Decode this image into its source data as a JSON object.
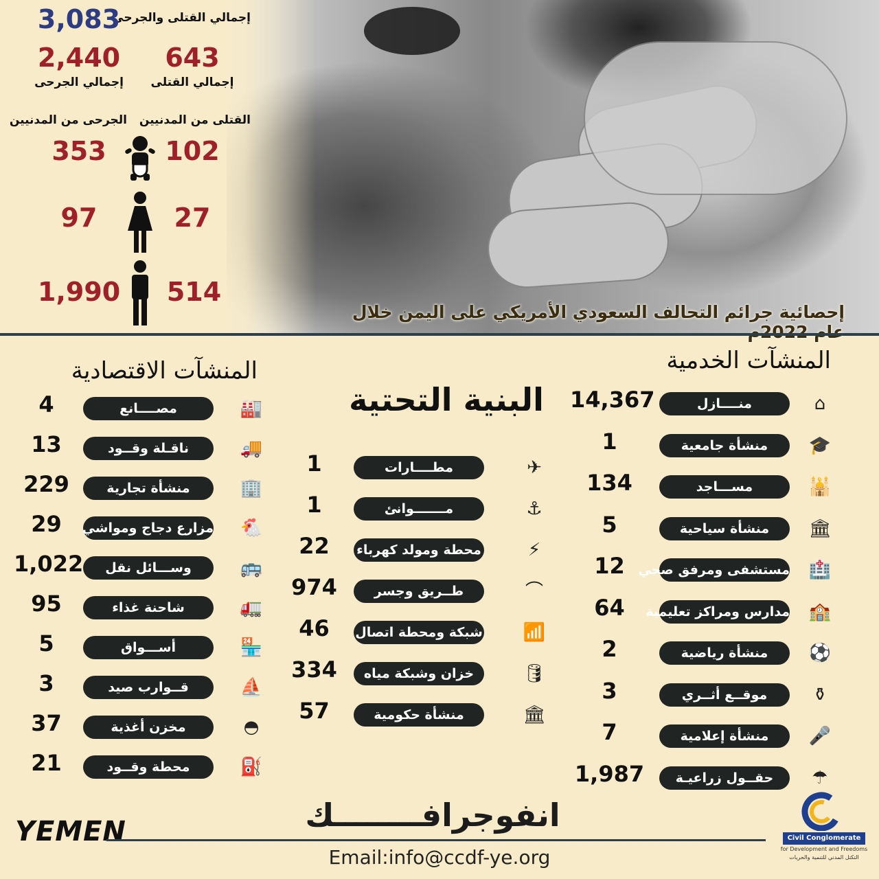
{
  "header": {
    "title": "إحصائية جرائم التحالف السعودي الأمريكي على اليمن خلال عام 2022م",
    "total_label": "إجمالي القتلى والجرحى",
    "total_value": "3,083",
    "killed_label": "إجمالي القتلى",
    "killed_value": "643",
    "injured_label": "إجمالي الجرحى",
    "injured_value": "2,440",
    "civ_killed_label": "القتلى من المدنيين",
    "civ_injured_label": "الجرحى من المدنيين",
    "rows": [
      {
        "icon": "child-icon",
        "killed": "102",
        "injured": "353"
      },
      {
        "icon": "woman-icon",
        "killed": "27",
        "injured": "97"
      },
      {
        "icon": "man-icon",
        "killed": "514",
        "injured": "1,990"
      }
    ]
  },
  "service": {
    "title": "المنشآت الخدمية",
    "items": [
      {
        "label": "منــــازل",
        "value": "14,367",
        "icon": "house-icon"
      },
      {
        "label": "منشأة جامعية",
        "value": "1",
        "icon": "graduation-cap-icon"
      },
      {
        "label": "مســـاجد",
        "value": "134",
        "icon": "mosque-icon"
      },
      {
        "label": "منشأة سياحية",
        "value": "5",
        "icon": "landmark-icon"
      },
      {
        "label": "مستشفى ومرفق صحي",
        "value": "12",
        "icon": "hospital-icon"
      },
      {
        "label": "مدارس ومراكز تعليمية",
        "value": "64",
        "icon": "school-icon"
      },
      {
        "label": "منشأة رياضية",
        "value": "2",
        "icon": "football-icon"
      },
      {
        "label": "موقــع أثــري",
        "value": "3",
        "icon": "vase-icon"
      },
      {
        "label": "منشأة إعلامية",
        "value": "7",
        "icon": "microphone-icon"
      },
      {
        "label": "حقــول زراعيـة",
        "value": "1,987",
        "icon": "irrigation-icon"
      }
    ]
  },
  "infra": {
    "title": "البنية التحتية",
    "items": [
      {
        "label": "مطــــارات",
        "value": "1",
        "icon": "airport-icon"
      },
      {
        "label": "مـــــــوانئ",
        "value": "1",
        "icon": "port-icon"
      },
      {
        "label": "محطة ومولد كهرباء",
        "value": "22",
        "icon": "generator-icon"
      },
      {
        "label": "طــريق وجسر",
        "value": "974",
        "icon": "bridge-icon"
      },
      {
        "label": "شبكة ومحطة اتصال",
        "value": "46",
        "icon": "network-icon"
      },
      {
        "label": "خزان وشبكة مياه",
        "value": "334",
        "icon": "water-tank-icon"
      },
      {
        "label": "منشأة حكومية",
        "value": "57",
        "icon": "government-building-icon"
      }
    ]
  },
  "economic": {
    "title": "المنشآت الاقتصادية",
    "items": [
      {
        "label": "مصــــانع",
        "value": "4",
        "icon": "factory-icon"
      },
      {
        "label": "ناقـلة وقــود",
        "value": "13",
        "icon": "fuel-tanker-icon"
      },
      {
        "label": "منشأة تجارية",
        "value": "229",
        "icon": "commercial-building-icon"
      },
      {
        "label": "مزارع دجاج ومواشي",
        "value": "29",
        "icon": "chicken-icon"
      },
      {
        "label": "وســـائل نقل",
        "value": "1,022",
        "icon": "bus-icon"
      },
      {
        "label": "شاحنة غذاء",
        "value": "95",
        "icon": "truck-icon"
      },
      {
        "label": "أســـواق",
        "value": "5",
        "icon": "shop-icon"
      },
      {
        "label": "قــوارب صيد",
        "value": "3",
        "icon": "boat-icon"
      },
      {
        "label": "مخزن أغذية",
        "value": "37",
        "icon": "food-store-icon"
      },
      {
        "label": "محطة وقــود",
        "value": "21",
        "icon": "fuel-pump-icon"
      }
    ]
  },
  "footer": {
    "infograph": "انفوجرافــــــــك",
    "email": "Email:info@ccdf-ye.org",
    "yemen": "YEMEN",
    "org_en": "Civil Conglomerate",
    "org_en_sub": "for Development and Freedoms",
    "org_ar": "التكتل المدني للتنمية والحريات"
  }
}
